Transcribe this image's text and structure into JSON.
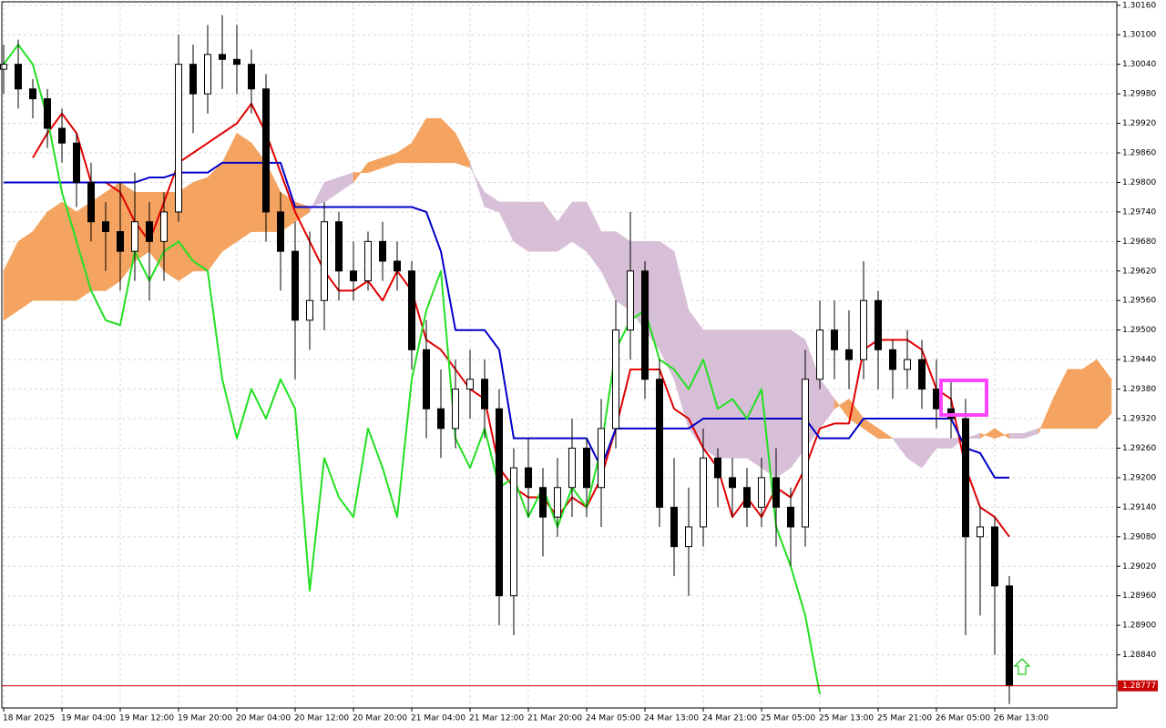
{
  "chart_data": {
    "type": "candlestick",
    "categories": [
      "18 Mar 2025",
      null,
      null,
      null,
      "19 Mar 04:00",
      null,
      null,
      null,
      "19 Mar 12:00",
      null,
      null,
      null,
      "19 Mar 20:00",
      null,
      null,
      null,
      "20 Mar 04:00",
      null,
      null,
      null,
      "20 Mar 12:00",
      null,
      null,
      null,
      "20 Mar 20:00",
      null,
      null,
      null,
      "21 Mar 04:00",
      null,
      null,
      null,
      "21 Mar 12:00",
      null,
      null,
      null,
      "21 Mar 20:00",
      null,
      null,
      null,
      "24 Mar 05:00",
      null,
      null,
      null,
      "24 Mar 13:00",
      null,
      null,
      null,
      "24 Mar 21:00",
      null,
      null,
      null,
      "25 Mar 05:00",
      null,
      null,
      null,
      "25 Mar 13:00",
      null,
      null,
      null,
      "25 Mar 21:00",
      null,
      null,
      null,
      "26 Mar 05:00",
      null,
      null,
      null,
      "26 Mar 13:00",
      null,
      null,
      null,
      null,
      null,
      null,
      null,
      null
    ],
    "candles": {
      "up_color": "#ffffff",
      "down_color": "#000000",
      "open": [
        1.3003,
        1.3004,
        1.2999,
        1.2997,
        1.2991,
        1.2988,
        1.298,
        1.2972,
        1.297,
        1.2966,
        1.2972,
        1.2968,
        1.2974,
        1.3004,
        1.2998,
        1.3006,
        1.3005,
        1.3004,
        1.2999,
        1.2974,
        1.2966,
        1.2952,
        1.2956,
        1.2972,
        1.2962,
        1.296,
        1.2968,
        1.2964,
        1.2962,
        1.2946,
        1.2934,
        1.293,
        1.2938,
        1.294,
        1.2934,
        1.2896,
        1.2922,
        1.2918,
        1.2912,
        1.2918,
        1.2926,
        1.2918,
        1.293,
        1.295,
        1.2962,
        1.294,
        1.2914,
        1.2906,
        1.291,
        1.2924,
        1.292,
        1.2918,
        1.2914,
        1.292,
        1.2914,
        1.291,
        1.294,
        1.295,
        1.2946,
        1.2944,
        1.2956,
        1.2946,
        1.2942,
        1.2944,
        1.2938,
        1.2934,
        1.2932,
        1.2908,
        1.291,
        1.2898,
        null,
        null,
        null,
        null,
        null,
        null,
        null
      ],
      "high": [
        1.3008,
        1.3009,
        1.3001,
        1.2999,
        1.2995,
        1.299,
        1.2984,
        1.2976,
        1.298,
        1.2982,
        1.2976,
        1.2978,
        1.301,
        1.3008,
        1.3012,
        1.3014,
        1.3012,
        1.3007,
        1.3002,
        1.2978,
        1.2972,
        1.297,
        1.2976,
        1.2974,
        1.2968,
        1.297,
        1.2972,
        1.2968,
        1.2964,
        1.2952,
        1.2942,
        1.2944,
        1.2946,
        1.2944,
        1.2938,
        1.2926,
        1.2928,
        1.2922,
        1.2924,
        1.2932,
        1.2928,
        1.2936,
        1.2956,
        1.2974,
        1.2964,
        1.2944,
        1.2924,
        1.2918,
        1.293,
        1.2926,
        1.2924,
        1.2922,
        1.2924,
        1.2926,
        1.2918,
        1.2946,
        1.2956,
        1.2956,
        1.2954,
        1.2964,
        1.2958,
        1.2948,
        1.295,
        1.2948,
        1.2944,
        1.294,
        1.2936,
        1.2914,
        1.2912,
        1.29,
        null,
        null,
        null,
        null,
        null,
        null,
        null
      ],
      "low": [
        1.2998,
        1.2995,
        1.2993,
        1.2987,
        1.2984,
        1.2975,
        1.2968,
        1.2962,
        1.2958,
        1.296,
        1.2956,
        1.296,
        1.2972,
        1.299,
        1.2994,
        1.2999,
        1.2998,
        1.2994,
        1.2968,
        1.2958,
        1.294,
        1.2946,
        1.295,
        1.2956,
        1.2956,
        1.2958,
        1.296,
        1.2958,
        1.2942,
        1.2928,
        1.2924,
        1.2926,
        1.2932,
        1.2928,
        1.289,
        1.2888,
        1.2912,
        1.2904,
        1.2908,
        1.2912,
        1.2912,
        1.291,
        1.2926,
        1.2944,
        1.2936,
        1.291,
        1.29,
        1.2896,
        1.2906,
        1.2914,
        1.2912,
        1.291,
        1.291,
        1.2906,
        1.2902,
        1.2906,
        1.2938,
        1.294,
        1.2938,
        1.294,
        1.2938,
        1.2936,
        1.2938,
        1.2934,
        1.293,
        1.2928,
        1.2888,
        1.2892,
        1.2884,
        1.2874,
        null,
        null,
        null,
        null,
        null,
        null,
        null
      ],
      "close": [
        1.3004,
        1.2999,
        1.2997,
        1.2991,
        1.2988,
        1.298,
        1.2972,
        1.297,
        1.2966,
        1.2972,
        1.2968,
        1.2974,
        1.3004,
        1.2998,
        1.3006,
        1.3005,
        1.3004,
        1.2999,
        1.2974,
        1.2966,
        1.2952,
        1.2956,
        1.2972,
        1.2962,
        1.296,
        1.2968,
        1.2964,
        1.2962,
        1.2946,
        1.2934,
        1.293,
        1.2938,
        1.294,
        1.2934,
        1.2896,
        1.2922,
        1.2918,
        1.2912,
        1.2918,
        1.2926,
        1.2918,
        1.293,
        1.295,
        1.2962,
        1.294,
        1.2914,
        1.2906,
        1.291,
        1.2924,
        1.292,
        1.2918,
        1.2914,
        1.292,
        1.2914,
        1.291,
        1.294,
        1.295,
        1.2946,
        1.2944,
        1.2956,
        1.2946,
        1.2942,
        1.2944,
        1.2938,
        1.2934,
        1.2932,
        1.2908,
        1.291,
        1.2898,
        1.28777,
        null,
        null,
        null,
        null,
        null,
        null,
        null
      ]
    },
    "lines": [
      {
        "color": "#e00000",
        "values": [
          null,
          null,
          1.2985,
          1.299,
          1.2994,
          1.299,
          1.298,
          1.298,
          1.2978,
          1.2972,
          1.2968,
          1.2976,
          1.2984,
          1.2986,
          1.2988,
          1.299,
          1.2992,
          1.2996,
          1.299,
          1.2982,
          1.2974,
          1.2968,
          1.2962,
          1.2958,
          1.2958,
          1.296,
          1.2956,
          1.2962,
          1.2958,
          1.2948,
          1.2946,
          1.2942,
          1.2938,
          1.2936,
          1.2922,
          1.2918,
          1.2916,
          1.2916,
          1.2912,
          1.2916,
          1.2914,
          1.292,
          1.293,
          1.2942,
          1.2942,
          1.2942,
          1.2934,
          1.2932,
          1.2926,
          1.2922,
          1.2912,
          1.2916,
          1.2912,
          1.2918,
          1.2916,
          1.2922,
          1.293,
          1.2931,
          1.2931,
          1.2946,
          1.2948,
          1.2948,
          1.2948,
          1.2946,
          1.2938,
          1.2936,
          1.2922,
          1.2914,
          1.2912,
          1.2908,
          null,
          null,
          null,
          null,
          null,
          null,
          null
        ]
      },
      {
        "color": "#0000c8",
        "values": [
          1.298,
          1.298,
          1.298,
          1.298,
          1.298,
          1.298,
          1.298,
          1.298,
          1.298,
          1.298,
          1.2981,
          1.2981,
          1.2982,
          1.2982,
          1.2982,
          1.2984,
          1.2984,
          1.2984,
          1.2984,
          1.2984,
          1.2975,
          1.2975,
          1.2975,
          1.2975,
          1.2975,
          1.2975,
          1.2975,
          1.2975,
          1.2975,
          1.2974,
          1.2966,
          1.295,
          1.295,
          1.295,
          1.2946,
          1.2928,
          1.2928,
          1.2928,
          1.2928,
          1.2928,
          1.2928,
          1.2922,
          1.293,
          1.293,
          1.293,
          1.293,
          1.293,
          1.293,
          1.2932,
          1.2932,
          1.2932,
          1.2932,
          1.2932,
          1.2932,
          1.2932,
          1.2932,
          1.2928,
          1.2928,
          1.2928,
          1.2932,
          1.2932,
          1.2932,
          1.2932,
          1.2932,
          1.2932,
          1.2932,
          1.2926,
          1.2925,
          1.292,
          1.292,
          null,
          null,
          null,
          null,
          null,
          null,
          null
        ]
      },
      {
        "color": "#22e022",
        "values": [
          1.3004,
          1.3008,
          1.3004,
          1.2993,
          1.2978,
          1.2968,
          1.2958,
          1.2952,
          1.2951,
          1.2966,
          1.296,
          1.2966,
          1.2968,
          1.2964,
          1.2962,
          1.294,
          1.2928,
          1.2938,
          1.2932,
          1.294,
          1.2934,
          1.2897,
          1.2924,
          1.2916,
          1.2912,
          1.293,
          1.2922,
          1.2912,
          1.294,
          1.2954,
          1.2962,
          1.2928,
          1.2922,
          1.293,
          1.2918,
          1.292,
          1.2912,
          1.2918,
          1.291,
          1.2918,
          1.2914,
          1.2926,
          1.2946,
          1.2952,
          1.2954,
          1.2944,
          1.2942,
          1.2938,
          1.2944,
          1.2934,
          1.2936,
          1.2932,
          1.2938,
          1.291,
          1.2902,
          1.2892,
          1.2876,
          null,
          null,
          null,
          null,
          null,
          null,
          null,
          null,
          null,
          null,
          null,
          null,
          null,
          null,
          null,
          null,
          null,
          null,
          null,
          null
        ]
      }
    ],
    "cloud": {
      "up_color": "#f4a460",
      "down_color": "#d8bfd8",
      "span_a": [
        1.2962,
        1.2968,
        1.297,
        1.2974,
        1.2976,
        1.2974,
        1.2976,
        1.2978,
        1.298,
        1.2978,
        1.2978,
        1.2978,
        1.2978,
        1.298,
        1.2981,
        1.2984,
        1.299,
        1.2988,
        1.2984,
        1.2978,
        1.2976,
        1.2975,
        1.2976,
        1.2978,
        1.298,
        1.2984,
        1.2985,
        1.2986,
        1.2988,
        1.2993,
        1.2993,
        1.299,
        1.2984,
        1.2975,
        1.2974,
        1.2968,
        1.2966,
        1.2966,
        1.2966,
        1.2968,
        1.2966,
        1.2962,
        1.2956,
        1.2954,
        1.295,
        1.2946,
        1.294,
        1.293,
        1.2926,
        1.2924,
        1.2924,
        1.2924,
        1.2922,
        1.292,
        1.2922,
        1.2926,
        1.293,
        1.2934,
        1.2936,
        1.2932,
        1.293,
        1.2928,
        1.2924,
        1.2922,
        1.2926,
        1.2926,
        1.2928,
        1.2928,
        1.293,
        1.2928,
        1.2928,
        1.2929,
        1.2936,
        1.2942,
        1.2942,
        1.2944,
        1.294
      ],
      "span_b": [
        1.2952,
        1.2954,
        1.2956,
        1.2956,
        1.2956,
        1.2956,
        1.2958,
        1.2958,
        1.296,
        1.2964,
        1.2966,
        1.2962,
        1.296,
        1.2962,
        1.2962,
        1.2966,
        1.2968,
        1.297,
        1.297,
        1.297,
        1.2972,
        1.2974,
        1.298,
        1.2981,
        1.2982,
        1.2982,
        1.2983,
        1.2984,
        1.2984,
        1.2984,
        1.2984,
        1.2984,
        1.2983,
        1.2978,
        1.2976,
        1.2976,
        1.2976,
        1.2976,
        1.2972,
        1.2976,
        1.2976,
        1.297,
        1.297,
        1.2968,
        1.2968,
        1.2968,
        1.2966,
        1.2954,
        1.295,
        1.295,
        1.295,
        1.295,
        1.295,
        1.295,
        1.295,
        1.2948,
        1.294,
        1.2936,
        1.2932,
        1.293,
        1.2928,
        1.2928,
        1.2928,
        1.2928,
        1.2928,
        1.2928,
        1.2928,
        1.2929,
        1.2928,
        1.2929,
        1.2929,
        1.293,
        1.293,
        1.293,
        1.293,
        1.293,
        1.2933
      ]
    },
    "current_price": {
      "value": 1.28777,
      "label": "1.28777",
      "color": "#c80000"
    },
    "ylim": [
      1.28732,
      1.30167
    ],
    "yticks": [
      {
        "value": 1.3016,
        "label": "1.30160"
      },
      {
        "value": 1.301,
        "label": "1.30100"
      },
      {
        "value": 1.3004,
        "label": "1.30040"
      },
      {
        "value": 1.2998,
        "label": "1.29980"
      },
      {
        "value": 1.2992,
        "label": "1.29920"
      },
      {
        "value": 1.2986,
        "label": "1.29860"
      },
      {
        "value": 1.298,
        "label": "1.29800"
      },
      {
        "value": 1.2974,
        "label": "1.29740"
      },
      {
        "value": 1.2968,
        "label": "1.29680"
      },
      {
        "value": 1.2962,
        "label": "1.29620"
      },
      {
        "value": 1.2956,
        "label": "1.29560"
      },
      {
        "value": 1.295,
        "label": "1.29500"
      },
      {
        "value": 1.2944,
        "label": "1.29440"
      },
      {
        "value": 1.2938,
        "label": "1.29380"
      },
      {
        "value": 1.2932,
        "label": "1.29320"
      },
      {
        "value": 1.2926,
        "label": "1.29260"
      },
      {
        "value": 1.292,
        "label": "1.29200"
      },
      {
        "value": 1.2914,
        "label": "1.29140"
      },
      {
        "value": 1.2908,
        "label": "1.29080"
      },
      {
        "value": 1.2902,
        "label": "1.29020"
      },
      {
        "value": 1.2896,
        "label": "1.28960"
      },
      {
        "value": 1.289,
        "label": "1.28900"
      },
      {
        "value": 1.2884,
        "label": "1.28840"
      }
    ],
    "grid": true
  }
}
